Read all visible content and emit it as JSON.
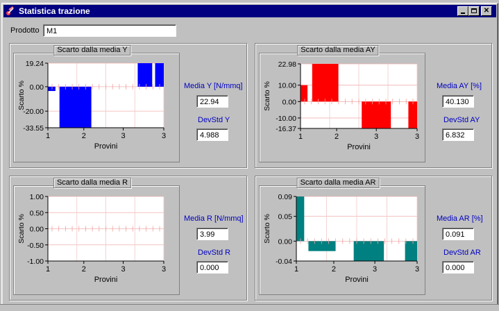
{
  "window": {
    "title": "Statistica trazione"
  },
  "product": {
    "label": "Prodotto",
    "value": "M1"
  },
  "charts": [
    {
      "id": "y",
      "panel_title": "Scarto dalla media Y",
      "color": "#0000ff",
      "mean_label": "Media Y [N/mmq]",
      "mean_value": "22.94",
      "std_label": "DevStd Y",
      "std_value": "4.988",
      "chart_data": {
        "type": "bar",
        "x": [
          1.05,
          1.75,
          2.75,
          2.95
        ],
        "values": [
          -3.5,
          -33.55,
          19.24,
          19.24
        ],
        "bar_spans": [
          [
            1.0,
            1.12
          ],
          [
            1.2,
            2.25
          ],
          [
            2.55,
            3.05
          ],
          [
            2.85,
            3.0
          ]
        ],
        "yticks": [
          "19.24",
          "0.00",
          "-20.00",
          "-33.55"
        ],
        "ytick_values": [
          19.24,
          0,
          -20,
          -33.55
        ],
        "ylim": [
          -33.55,
          19.24
        ],
        "xticks": [
          "1",
          "2",
          "3",
          "3"
        ],
        "xlim": [
          1,
          3
        ],
        "xlabel": "Provini",
        "ylabel": "Scarto %"
      }
    },
    {
      "id": "ay",
      "panel_title": "Scarto dalla media AY",
      "color": "#ff0000",
      "mean_label": "Media AY [%]",
      "mean_value": "40.130",
      "std_label": "DevStd AY",
      "std_value": "6.832",
      "chart_data": {
        "type": "bar",
        "values": [
          10.0,
          22.98,
          -16.37,
          -16.37
        ],
        "yticks": [
          "22.98",
          "10.00",
          "0.00",
          "-10.00",
          "-16.37"
        ],
        "ytick_values": [
          22.98,
          10,
          0,
          -10,
          -16.37
        ],
        "ylim": [
          -16.37,
          22.98
        ],
        "xticks": [
          "1",
          "2",
          "3",
          "3"
        ],
        "xlim": [
          1,
          3
        ],
        "xlabel": "Provini",
        "ylabel": "Scarto %"
      }
    },
    {
      "id": "r",
      "panel_title": "Scarto dalla media R",
      "color": "#ff8080",
      "mean_label": "Media R [N/mmq]",
      "mean_value": "3.99",
      "std_label": "DevStd R",
      "std_value": "0.000",
      "chart_data": {
        "type": "bar",
        "values": [
          0,
          0,
          0,
          0
        ],
        "yticks": [
          "1.00",
          "0.50",
          "0.00",
          "-0.50",
          "-1.00"
        ],
        "ytick_values": [
          1,
          0.5,
          0,
          -0.5,
          -1
        ],
        "ylim": [
          -1,
          1
        ],
        "xticks": [
          "1",
          "2",
          "3",
          "3"
        ],
        "xlim": [
          1,
          3
        ],
        "xlabel": "Provini",
        "ylabel": "Scarto %"
      }
    },
    {
      "id": "ar",
      "panel_title": "Scarto dalla media AR",
      "color": "#008080",
      "mean_label": "Media AR [%]",
      "mean_value": "0.091",
      "std_label": "DevStd AR",
      "std_value": "0.000",
      "chart_data": {
        "type": "bar",
        "values": [
          0.09,
          -0.02,
          -0.04,
          -0.04
        ],
        "yticks": [
          "0.09",
          "0.05",
          "0.00",
          "-0.04"
        ],
        "ytick_values": [
          0.09,
          0.05,
          0,
          -0.04
        ],
        "ylim": [
          -0.04,
          0.09
        ],
        "xticks": [
          "1",
          "2",
          "3",
          "3"
        ],
        "xlim": [
          1,
          3
        ],
        "xlabel": "Provini",
        "ylabel": "Scarto %"
      }
    }
  ]
}
